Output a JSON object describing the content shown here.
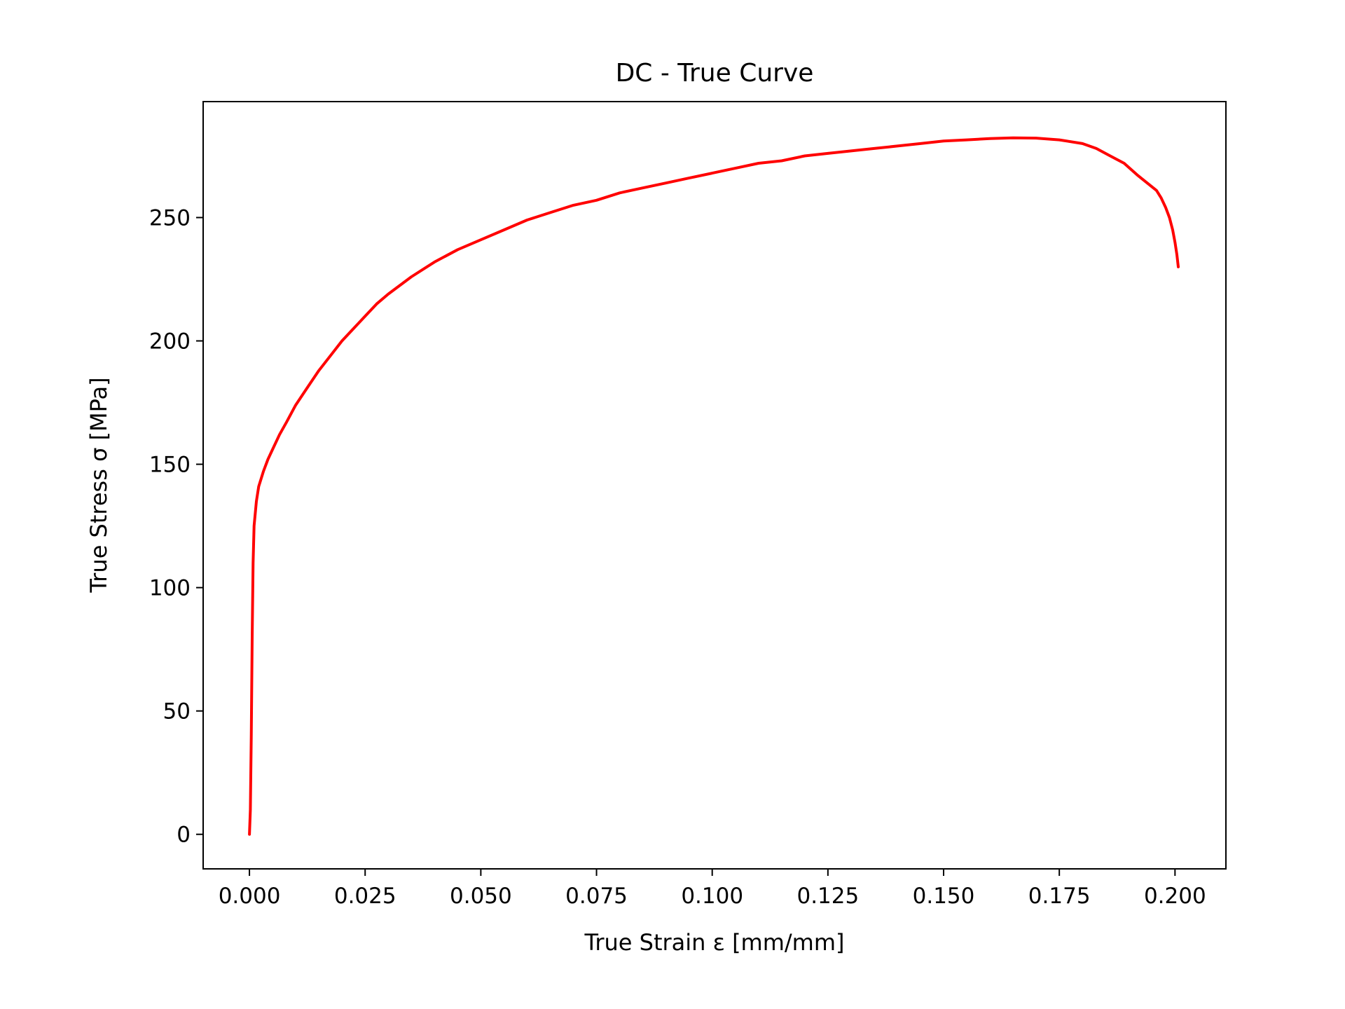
{
  "chart_data": {
    "type": "line",
    "title": "DC - True Curve",
    "xlabel": "True Strain ε [mm/mm]",
    "ylabel": "True Stress σ [MPa]",
    "xlim": [
      -0.01,
      0.211
    ],
    "ylim": [
      -14,
      297
    ],
    "xticks": [
      0.0,
      0.025,
      0.05,
      0.075,
      0.1,
      0.125,
      0.15,
      0.175,
      0.2
    ],
    "xtick_labels": [
      "0.000",
      "0.025",
      "0.050",
      "0.075",
      "0.100",
      "0.125",
      "0.150",
      "0.175",
      "0.200"
    ],
    "yticks": [
      0,
      50,
      100,
      150,
      200,
      250
    ],
    "ytick_labels": [
      "0",
      "50",
      "100",
      "150",
      "200",
      "250"
    ],
    "grid": false,
    "legend": "none",
    "series": [
      {
        "color": "#ff0000",
        "x": [
          0.0,
          0.0002,
          0.0004,
          0.0006,
          0.0008,
          0.001,
          0.0015,
          0.002,
          0.003,
          0.004,
          0.005,
          0.0065,
          0.008,
          0.01,
          0.0125,
          0.015,
          0.0175,
          0.02,
          0.0225,
          0.025,
          0.0275,
          0.03,
          0.035,
          0.04,
          0.045,
          0.05,
          0.055,
          0.06,
          0.065,
          0.07,
          0.075,
          0.08,
          0.085,
          0.09,
          0.095,
          0.1,
          0.105,
          0.11,
          0.115,
          0.12,
          0.125,
          0.13,
          0.135,
          0.14,
          0.145,
          0.15,
          0.155,
          0.16,
          0.165,
          0.17,
          0.175,
          0.18,
          0.183,
          0.186,
          0.189,
          0.192,
          0.194,
          0.196,
          0.197,
          0.198,
          0.1988,
          0.1995,
          0.2,
          0.2004,
          0.2007
        ],
        "y": [
          0,
          10,
          40,
          80,
          110,
          125,
          135,
          141,
          147,
          152,
          156,
          162,
          167,
          174,
          181,
          188,
          194,
          200,
          205,
          210,
          215,
          219,
          226,
          232,
          237,
          241,
          245,
          249,
          252,
          255,
          257,
          260,
          262,
          264,
          266,
          268,
          270,
          272,
          273,
          275,
          276,
          277,
          278,
          279,
          280,
          281,
          281.5,
          282,
          282.3,
          282.2,
          281.5,
          280,
          278,
          275,
          272,
          267,
          264,
          261,
          258,
          254,
          250,
          245,
          240,
          235,
          230
        ]
      }
    ]
  }
}
